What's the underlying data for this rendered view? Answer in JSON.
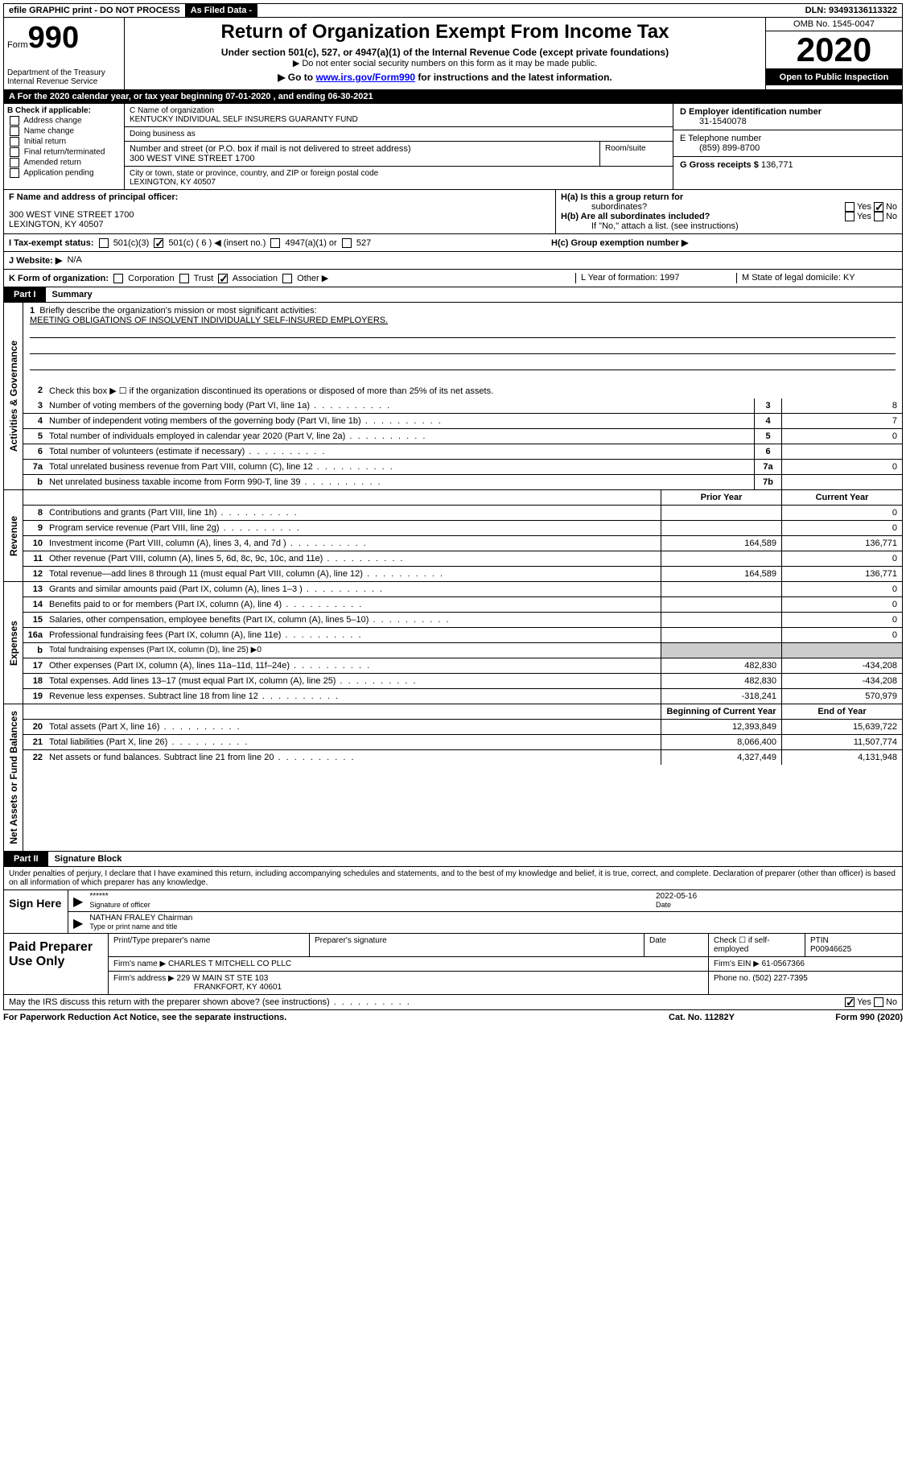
{
  "topbar": {
    "efile": "efile GRAPHIC print - DO NOT PROCESS",
    "asfiled": "As Filed Data -",
    "dln": "DLN: 93493136113322"
  },
  "header": {
    "form_prefix": "Form",
    "form_number": "990",
    "dept": "Department of the Treasury\nInternal Revenue Service",
    "title": "Return of Organization Exempt From Income Tax",
    "subtitle": "Under section 501(c), 527, or 4947(a)(1) of the Internal Revenue Code (except private foundations)",
    "sub2a": "▶ Do not enter social security numbers on this form as it may be made public.",
    "sub2b_pre": "▶ Go to ",
    "sub2b_link": "www.irs.gov/Form990",
    "sub2b_post": " for instructions and the latest information.",
    "omb": "OMB No. 1545-0047",
    "year": "2020",
    "open": "Open to Public Inspection"
  },
  "barA": "A  For the 2020 calendar year, or tax year beginning 07-01-2020   , and ending 06-30-2021",
  "sectionB": {
    "label": "B Check if applicable:",
    "items": [
      "Address change",
      "Name change",
      "Initial return",
      "Final return/terminated",
      "Amended return",
      "Application pending"
    ]
  },
  "sectionC": {
    "label": "C Name of organization",
    "name": "KENTUCKY INDIVIDUAL SELF INSURERS GUARANTY FUND",
    "dba": "Doing business as",
    "addr_label": "Number and street (or P.O. box if mail is not delivered to street address)",
    "addr": "300 WEST VINE STREET 1700",
    "room_label": "Room/suite",
    "city_label": "City or town, state or province, country, and ZIP or foreign postal code",
    "city": "LEXINGTON, KY  40507"
  },
  "sectionD": {
    "label": "D Employer identification number",
    "ein": "31-1540078"
  },
  "sectionE": {
    "label": "E Telephone number",
    "phone": "(859) 899-8700"
  },
  "sectionG": {
    "label": "G Gross receipts $",
    "amount": "136,771"
  },
  "sectionF": {
    "label": "F  Name and address of principal officer:",
    "addr1": "300 WEST VINE STREET 1700",
    "addr2": "LEXINGTON, KY  40507"
  },
  "sectionH": {
    "a_label": "H(a)  Is this a group return for",
    "a_label2": "subordinates?",
    "b_label": "H(b)  Are all subordinates included?",
    "b_note": "If \"No,\" attach a list. (see instructions)",
    "c_label": "H(c)  Group exemption number ▶",
    "yes": "Yes",
    "no": "No"
  },
  "rowI": {
    "label": "I  Tax-exempt status:",
    "opt1": "501(c)(3)",
    "opt2": "501(c) ( 6 ) ◀ (insert no.)",
    "opt3": "4947(a)(1) or",
    "opt4": "527"
  },
  "rowJ": {
    "label": "J  Website: ▶",
    "val": "N/A"
  },
  "rowK": {
    "label": "K Form of organization:",
    "opts": [
      "Corporation",
      "Trust",
      "Association",
      "Other ▶"
    ],
    "L": "L Year of formation: 1997",
    "M": "M State of legal domicile: KY"
  },
  "part1": {
    "label": "Part I",
    "title": "Summary"
  },
  "mission": {
    "num": "1",
    "label": "Briefly describe the organization's mission or most significant activities:",
    "text": "MEETING OBLIGATIONS OF INSOLVENT INDIVIDUALLY SELF-INSURED EMPLOYERS."
  },
  "gov": {
    "tab": "Activities & Governance",
    "r2": "Check this box ▶ ☐ if the organization discontinued its operations or disposed of more than 25% of its net assets.",
    "rows": [
      {
        "n": "3",
        "d": "Number of voting members of the governing body (Part VI, line 1a)",
        "lbl": "3",
        "v": "8"
      },
      {
        "n": "4",
        "d": "Number of independent voting members of the governing body (Part VI, line 1b)",
        "lbl": "4",
        "v": "7"
      },
      {
        "n": "5",
        "d": "Total number of individuals employed in calendar year 2020 (Part V, line 2a)",
        "lbl": "5",
        "v": "0"
      },
      {
        "n": "6",
        "d": "Total number of volunteers (estimate if necessary)",
        "lbl": "6",
        "v": ""
      },
      {
        "n": "7a",
        "d": "Total unrelated business revenue from Part VIII, column (C), line 12",
        "lbl": "7a",
        "v": "0"
      },
      {
        "n": "b",
        "d": "Net unrelated business taxable income from Form 990-T, line 39",
        "lbl": "7b",
        "v": ""
      }
    ]
  },
  "rev": {
    "tab": "Revenue",
    "hprior": "Prior Year",
    "hcurr": "Current Year",
    "rows": [
      {
        "n": "8",
        "d": "Contributions and grants (Part VIII, line 1h)",
        "p": "",
        "c": "0"
      },
      {
        "n": "9",
        "d": "Program service revenue (Part VIII, line 2g)",
        "p": "",
        "c": "0"
      },
      {
        "n": "10",
        "d": "Investment income (Part VIII, column (A), lines 3, 4, and 7d )",
        "p": "164,589",
        "c": "136,771"
      },
      {
        "n": "11",
        "d": "Other revenue (Part VIII, column (A), lines 5, 6d, 8c, 9c, 10c, and 11e)",
        "p": "",
        "c": "0"
      },
      {
        "n": "12",
        "d": "Total revenue—add lines 8 through 11 (must equal Part VIII, column (A), line 12)",
        "p": "164,589",
        "c": "136,771"
      }
    ]
  },
  "exp": {
    "tab": "Expenses",
    "rows": [
      {
        "n": "13",
        "d": "Grants and similar amounts paid (Part IX, column (A), lines 1–3 )",
        "p": "",
        "c": "0"
      },
      {
        "n": "14",
        "d": "Benefits paid to or for members (Part IX, column (A), line 4)",
        "p": "",
        "c": "0"
      },
      {
        "n": "15",
        "d": "Salaries, other compensation, employee benefits (Part IX, column (A), lines 5–10)",
        "p": "",
        "c": "0"
      },
      {
        "n": "16a",
        "d": "Professional fundraising fees (Part IX, column (A), line 11e)",
        "p": "",
        "c": "0"
      },
      {
        "n": "b",
        "d": "Total fundraising expenses (Part IX, column (D), line 25) ▶0",
        "p": null,
        "c": null
      },
      {
        "n": "17",
        "d": "Other expenses (Part IX, column (A), lines 11a–11d, 11f–24e)",
        "p": "482,830",
        "c": "-434,208"
      },
      {
        "n": "18",
        "d": "Total expenses. Add lines 13–17 (must equal Part IX, column (A), line 25)",
        "p": "482,830",
        "c": "-434,208"
      },
      {
        "n": "19",
        "d": "Revenue less expenses. Subtract line 18 from line 12",
        "p": "-318,241",
        "c": "570,979"
      }
    ]
  },
  "net": {
    "tab": "Net Assets or Fund Balances",
    "hbeg": "Beginning of Current Year",
    "hend": "End of Year",
    "rows": [
      {
        "n": "20",
        "d": "Total assets (Part X, line 16)",
        "p": "12,393,849",
        "c": "15,639,722"
      },
      {
        "n": "21",
        "d": "Total liabilities (Part X, line 26)",
        "p": "8,066,400",
        "c": "11,507,774"
      },
      {
        "n": "22",
        "d": "Net assets or fund balances. Subtract line 21 from line 20",
        "p": "4,327,449",
        "c": "4,131,948"
      }
    ]
  },
  "part2": {
    "label": "Part II",
    "title": "Signature Block"
  },
  "sigtext": "Under penalties of perjury, I declare that I have examined this return, including accompanying schedules and statements, and to the best of my knowledge and belief, it is true, correct, and complete. Declaration of preparer (other than officer) is based on all information of which preparer has any knowledge.",
  "sign": {
    "label": "Sign Here",
    "stars": "******",
    "sig_of": "Signature of officer",
    "date": "2022-05-16",
    "date_lbl": "Date",
    "name": "NATHAN FRALEY Chairman",
    "type_lbl": "Type or print name and title"
  },
  "prep": {
    "label": "Paid Preparer Use Only",
    "print_lbl": "Print/Type preparer's name",
    "sig_lbl": "Preparer's signature",
    "date_lbl": "Date",
    "check_lbl": "Check ☐ if self-employed",
    "ptin_lbl": "PTIN",
    "ptin": "P00946625",
    "firm_lbl": "Firm's name    ▶",
    "firm": "CHARLES T MITCHELL CO PLLC",
    "ein_lbl": "Firm's EIN ▶",
    "ein": "61-0567366",
    "addr_lbl": "Firm's address ▶",
    "addr1": "229 W MAIN ST STE 103",
    "addr2": "FRANKFORT, KY  40601",
    "phone_lbl": "Phone no.",
    "phone": "(502) 227-7395"
  },
  "footer": {
    "q": "May the IRS discuss this return with the preparer shown above? (see instructions)",
    "yes": "Yes",
    "no": "No",
    "paperwork": "For Paperwork Reduction Act Notice, see the separate instructions.",
    "cat": "Cat. No. 11282Y",
    "formref": "Form 990 (2020)"
  }
}
